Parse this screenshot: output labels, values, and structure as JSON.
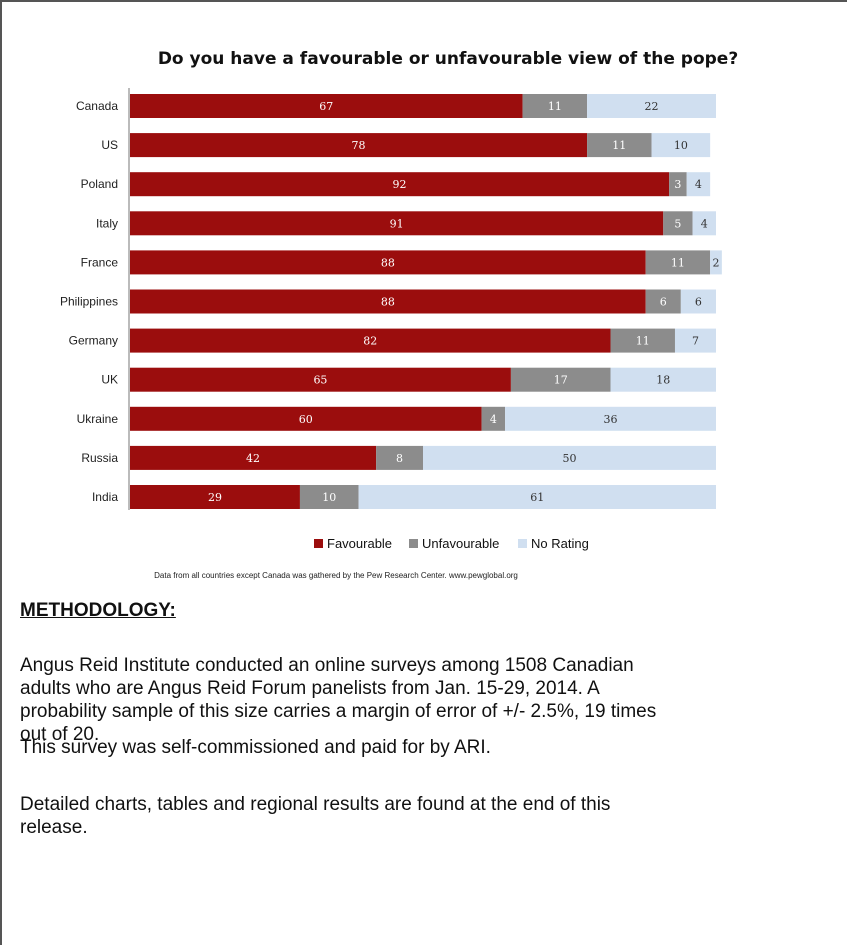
{
  "chart_data": {
    "type": "bar",
    "orientation": "horizontal",
    "stacked": true,
    "title": "Do you have a favourable or unfavourable view of the pope?",
    "categories": [
      "Canada",
      "US",
      "Poland",
      "Italy",
      "France",
      "Philippines",
      "Germany",
      "UK",
      "Ukraine",
      "Russia",
      "India"
    ],
    "series": [
      {
        "name": "Favourable",
        "color": "#9b0d0d",
        "values": [
          67,
          78,
          92,
          91,
          88,
          88,
          82,
          65,
          60,
          42,
          29
        ]
      },
      {
        "name": "Unfavourable",
        "color": "#8c8c8c",
        "values": [
          11,
          11,
          3,
          5,
          11,
          6,
          11,
          17,
          4,
          8,
          10
        ]
      },
      {
        "name": "No Rating",
        "color": "#d0dff0",
        "values": [
          22,
          10,
          4,
          4,
          2,
          6,
          7,
          18,
          36,
          50,
          61
        ]
      }
    ],
    "xlim": [
      0,
      100
    ],
    "legend_position": "bottom",
    "grid": false,
    "source_note": "Data from all countries except Canada was gathered by the Pew Research Center. www.pewglobal.org"
  },
  "methodology": {
    "heading": "METHODOLOGY:",
    "paragraph1_lines": [
      "Angus Reid Institute conducted an online surveys among 1508 Canadian",
      "adults who are Angus Reid Forum panelists from Jan. 15-29, 2014. A",
      "probability sample of this size carries a margin of error of +/- 2.5%, 19 times",
      "out of 20."
    ],
    "paragraph2": "This survey was self-commissioned and paid for by ARI.",
    "paragraph3_lines": [
      "Detailed charts, tables and regional results are found at the end of this",
      "release."
    ]
  }
}
